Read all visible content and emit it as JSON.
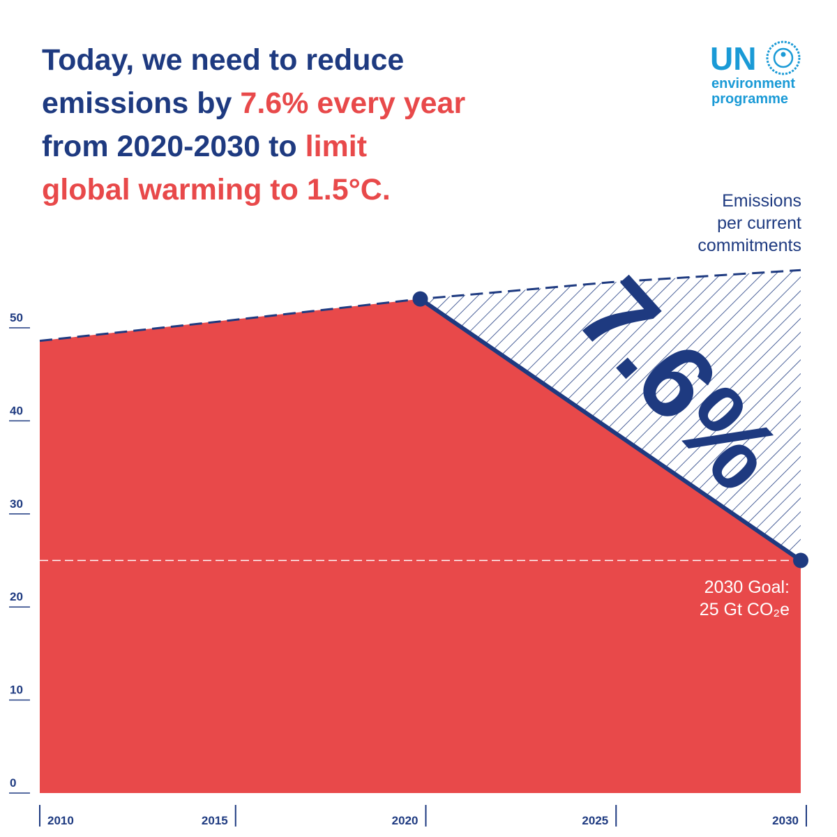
{
  "chart_data": {
    "type": "area",
    "title_lines": [
      [
        {
          "text": "Today, we need to reduce",
          "highlight": false
        }
      ],
      [
        {
          "text": "emissions by ",
          "highlight": false
        },
        {
          "text": "7.6% every year",
          "highlight": true
        }
      ],
      [
        {
          "text": "from 2020-2030 to ",
          "highlight": false
        },
        {
          "text": "limit",
          "highlight": true
        }
      ],
      [
        {
          "text": "global warming to 1.5°C.",
          "highlight": true
        }
      ]
    ],
    "title_color": "#1e3a80",
    "highlight_color": "#e8494a",
    "logo": {
      "name": "UN",
      "lines": [
        "environment",
        "programme"
      ],
      "color": "#1a9ad6"
    },
    "series": [
      {
        "color": "#e8494a",
        "x": [
          2010,
          2020,
          2030
        ],
        "values": [
          48.6,
          53.1,
          25
        ]
      },
      {
        "color": "#1e3a80",
        "x": [
          2010,
          2015,
          2020,
          2025,
          2030
        ],
        "values": [
          48.6,
          50.8,
          53.1,
          54.9,
          56.2
        ]
      }
    ],
    "reference_line": {
      "value": 25
    },
    "annotations": {
      "commitments": [
        "Emissions",
        "per current",
        "commitments"
      ],
      "goal": [
        "2030 Goal:",
        "25 Gt CO₂e"
      ],
      "big": "7.6%"
    },
    "xlim": [
      2010,
      2030
    ],
    "xticks": [
      2010,
      2015,
      2020,
      2025,
      2030
    ],
    "ylim": [
      0,
      50
    ],
    "yticks": [
      0,
      10,
      20,
      30,
      40,
      50
    ]
  }
}
